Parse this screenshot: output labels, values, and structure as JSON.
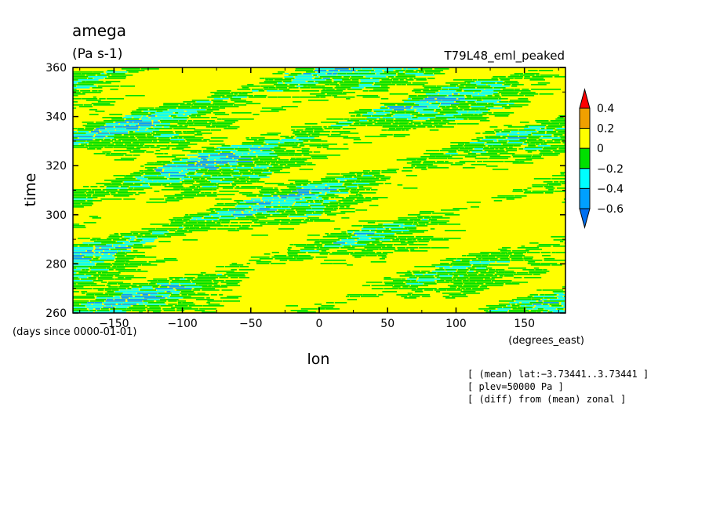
{
  "chart_data": {
    "type": "heatmap",
    "title": "amega",
    "units": "(Pa s-1)",
    "experiment": "T79L48_eml_peaked",
    "xlabel": "lon",
    "x_units": "(degrees_east)",
    "ylabel": "time",
    "y_units": "(days since 0000-01-01)",
    "xlim": [
      -180,
      180
    ],
    "ylim": [
      260,
      360
    ],
    "x_ticks": [
      -150,
      -100,
      -50,
      0,
      50,
      100,
      150
    ],
    "x_tick_labels": [
      "−150",
      "−100",
      "−50",
      "0",
      "50",
      "100",
      "150"
    ],
    "y_ticks": [
      260,
      280,
      300,
      320,
      340,
      360
    ],
    "y_tick_labels": [
      "260",
      "280",
      "300",
      "320",
      "340",
      "360"
    ],
    "colorbar": {
      "levels": [
        0.4,
        0.2,
        0,
        -0.2,
        -0.4,
        -0.6
      ],
      "level_labels": [
        "0.4",
        "0.2",
        "0",
        "−0.2",
        "−0.4",
        "−0.6"
      ],
      "bin_colors": [
        "#f0a000",
        "#ffff00",
        "#00e000",
        "#00ffff",
        "#00a0ff"
      ],
      "over_color": "#ff0000",
      "under_color": "#0070f0"
    },
    "field_colors": {
      "positive": "#ffff00",
      "slightly_negative": "#00e000",
      "negative": "#00ffff",
      "strong_negative": "#00a0ff"
    },
    "pattern": "westward-tilted bands of negative anomalies (green/cyan) embedded in a predominantly positive (yellow) field",
    "notes": [
      "[ (mean) lat:−3.73441..3.73441 ]",
      "[ plev=50000 Pa ]",
      "[ (diff) from (mean) zonal ]"
    ]
  }
}
